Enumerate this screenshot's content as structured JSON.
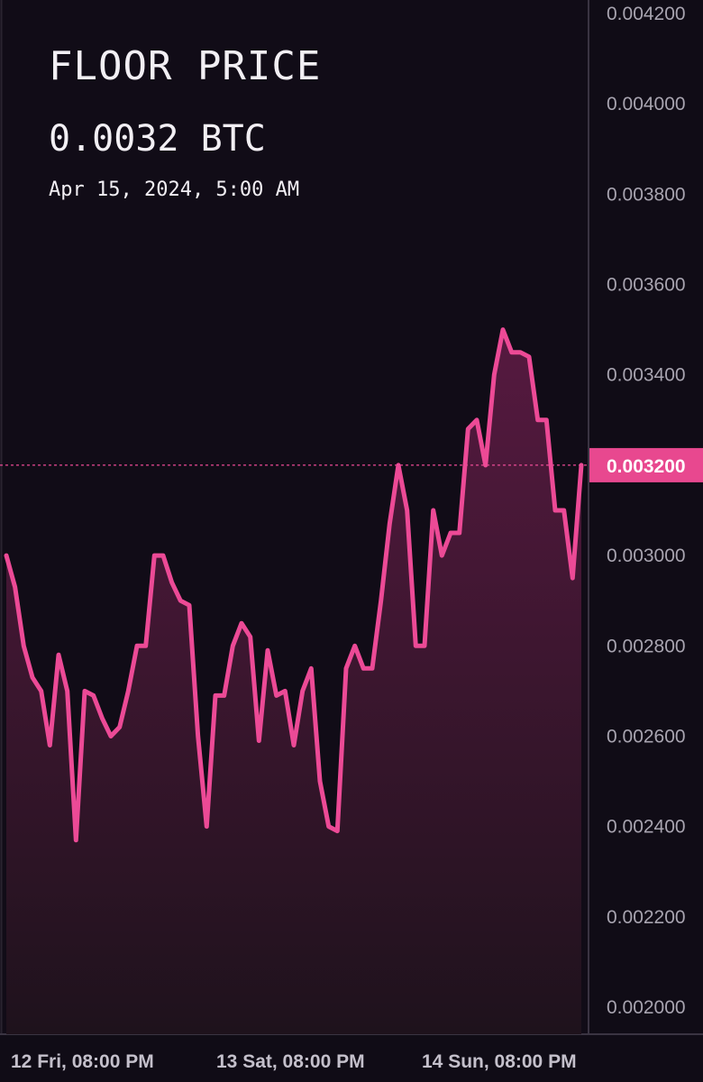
{
  "header": {
    "title": "FLOOR PRICE",
    "price": "0.0032 BTC",
    "timestamp": "Apr 15, 2024, 5:00 AM"
  },
  "colors": {
    "background": "#100c16",
    "line": "#ec4a96",
    "fill_top": "#5a1a42",
    "fill_bottom": "#1e121c",
    "axis": "#3a3442",
    "last_value_badge": "#e8488f"
  },
  "chart_data": {
    "type": "area",
    "title": "FLOOR PRICE",
    "xlabel": "",
    "ylabel": "",
    "ylim": [
      0.002,
      0.0042
    ],
    "y_ticks": [
      "0.004200",
      "0.004000",
      "0.003800",
      "0.003600",
      "0.003400",
      "0.003200",
      "0.003000",
      "0.002800",
      "0.002600",
      "0.002400",
      "0.002200",
      "0.002000"
    ],
    "x_ticks": [
      "12 Fri, 08:00 PM",
      "13 Sat, 08:00 PM",
      "14 Sun, 08:00 PM"
    ],
    "grid": false,
    "last_value": 0.0032,
    "last_value_label": "0.003200",
    "series": [
      {
        "values": [
          0.003,
          0.00293,
          0.0028,
          0.00273,
          0.0027,
          0.00258,
          0.00278,
          0.0027,
          0.00237,
          0.0027,
          0.00269,
          0.00264,
          0.0026,
          0.00262,
          0.0027,
          0.0028,
          0.0028,
          0.003,
          0.003,
          0.00294,
          0.0029,
          0.00289,
          0.0026,
          0.0024,
          0.00269,
          0.00269,
          0.0028,
          0.00285,
          0.00282,
          0.00259,
          0.00279,
          0.00269,
          0.0027,
          0.00258,
          0.0027,
          0.00275,
          0.0025,
          0.0024,
          0.00239,
          0.00275,
          0.0028,
          0.00275,
          0.00275,
          0.0029,
          0.00307,
          0.0032,
          0.0031,
          0.0028,
          0.0028,
          0.0031,
          0.003,
          0.00305,
          0.00305,
          0.00328,
          0.0033,
          0.0032,
          0.0034,
          0.0035,
          0.00345,
          0.00345,
          0.00344,
          0.0033,
          0.0033,
          0.0031,
          0.0031,
          0.00295,
          0.0032
        ]
      }
    ]
  }
}
